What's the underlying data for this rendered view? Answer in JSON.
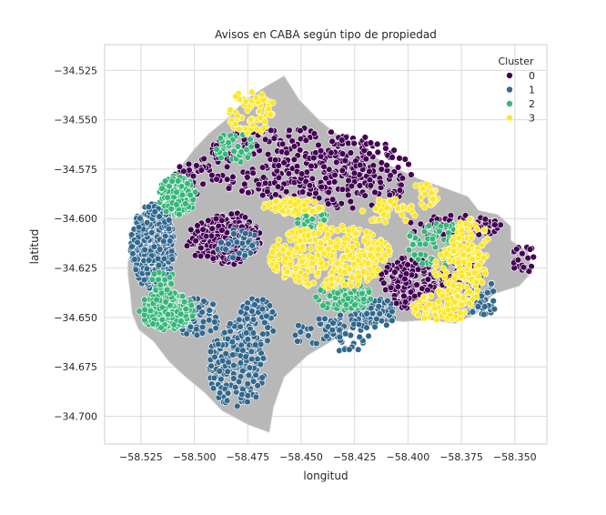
{
  "chart_data": {
    "type": "scatter",
    "title": "Avisos en CABA según tipo de propiedad",
    "xlabel": "longitud",
    "ylabel": "latitud",
    "xlim": [
      -58.542,
      -58.335
    ],
    "ylim": [
      -34.714,
      -34.512
    ],
    "xticks": [
      -58.525,
      -58.5,
      -58.475,
      -58.45,
      -58.425,
      -58.4,
      -58.375,
      -58.35
    ],
    "xtick_labels": [
      "−58.525",
      "−58.500",
      "−58.475",
      "−58.450",
      "−58.425",
      "−58.400",
      "−58.375",
      "−58.350"
    ],
    "yticks": [
      -34.525,
      -34.55,
      -34.575,
      -34.6,
      -34.625,
      -34.65,
      -34.675,
      -34.7
    ],
    "ytick_labels": [
      "−34.525",
      "−34.550",
      "−34.575",
      "−34.600",
      "−34.625",
      "−34.650",
      "−34.675",
      "−34.700"
    ],
    "grid": true,
    "legend": {
      "title": "Cluster",
      "position": "top-right",
      "entries": [
        "0",
        "1",
        "2",
        "3"
      ]
    },
    "colors": {
      "0": "#440154",
      "1": "#31688e",
      "2": "#35b779",
      "3": "#fde725",
      "map": "#b8b8b8",
      "background": "#ffffff",
      "grid": "#d9d9d9"
    },
    "map_outline": [
      [
        -58.531,
        -34.622
      ],
      [
        -58.527,
        -34.608
      ],
      [
        -58.52,
        -34.597
      ],
      [
        -58.515,
        -34.59
      ],
      [
        -58.51,
        -34.582
      ],
      [
        -58.505,
        -34.572
      ],
      [
        -58.5,
        -34.565
      ],
      [
        -58.493,
        -34.557
      ],
      [
        -58.485,
        -34.55
      ],
      [
        -58.476,
        -34.54
      ],
      [
        -58.466,
        -34.533
      ],
      [
        -58.458,
        -34.528
      ],
      [
        -58.451,
        -34.54
      ],
      [
        -58.441,
        -34.551
      ],
      [
        -58.43,
        -34.56
      ],
      [
        -58.42,
        -34.566
      ],
      [
        -58.409,
        -34.573
      ],
      [
        -58.395,
        -34.58
      ],
      [
        -58.382,
        -34.585
      ],
      [
        -58.372,
        -34.589
      ],
      [
        -58.367,
        -34.596
      ],
      [
        -58.358,
        -34.598
      ],
      [
        -58.352,
        -34.604
      ],
      [
        -58.352,
        -34.611
      ],
      [
        -58.344,
        -34.617
      ],
      [
        -58.342,
        -34.627
      ],
      [
        -58.348,
        -34.634
      ],
      [
        -58.36,
        -34.638
      ],
      [
        -58.368,
        -34.648
      ],
      [
        -58.378,
        -34.653
      ],
      [
        -58.39,
        -34.651
      ],
      [
        -58.402,
        -34.652
      ],
      [
        -58.413,
        -34.651
      ],
      [
        -58.425,
        -34.654
      ],
      [
        -58.436,
        -34.662
      ],
      [
        -58.447,
        -34.669
      ],
      [
        -58.458,
        -34.68
      ],
      [
        -58.463,
        -34.695
      ],
      [
        -58.465,
        -34.708
      ],
      [
        -58.475,
        -34.704
      ],
      [
        -58.487,
        -34.697
      ],
      [
        -58.495,
        -34.688
      ],
      [
        -58.504,
        -34.68
      ],
      [
        -58.512,
        -34.672
      ],
      [
        -58.519,
        -34.662
      ],
      [
        -58.526,
        -34.656
      ],
      [
        -58.529,
        -34.648
      ],
      [
        -58.53,
        -34.637
      ],
      [
        -58.531,
        -34.628
      ]
    ],
    "cluster_regions": [
      {
        "cluster": "0",
        "count": 260,
        "lon": [
          -58.505,
          -58.405
        ],
        "lat": [
          -34.593,
          -34.55
        ],
        "spread": 0.85
      },
      {
        "cluster": "0",
        "count": 160,
        "lon": [
          -58.455,
          -58.395
        ],
        "lat": [
          -34.598,
          -34.555
        ],
        "spread": 0.9
      },
      {
        "cluster": "0",
        "count": 150,
        "lon": [
          -58.5,
          -58.467
        ],
        "lat": [
          -34.625,
          -34.595
        ],
        "spread": 0.9
      },
      {
        "cluster": "0",
        "count": 140,
        "lon": [
          -58.505,
          -58.47
        ],
        "lat": [
          -34.622,
          -34.6
        ],
        "spread": 1.0
      },
      {
        "cluster": "0",
        "count": 150,
        "lon": [
          -58.415,
          -58.385
        ],
        "lat": [
          -34.647,
          -34.618
        ],
        "spread": 0.9
      },
      {
        "cluster": "0",
        "count": 60,
        "lon": [
          -58.386,
          -58.365
        ],
        "lat": [
          -34.64,
          -34.62
        ],
        "spread": 0.9
      },
      {
        "cluster": "0",
        "count": 55,
        "lon": [
          -58.4,
          -58.355
        ],
        "lat": [
          -34.61,
          -34.598
        ],
        "spread": 1.0
      },
      {
        "cluster": "0",
        "count": 25,
        "lon": [
          -58.352,
          -58.34
        ],
        "lat": [
          -34.628,
          -34.612
        ],
        "spread": 1.0
      },
      {
        "cluster": "0",
        "count": 30,
        "lon": [
          -58.51,
          -58.495
        ],
        "lat": [
          -34.592,
          -34.57
        ],
        "spread": 1.0
      },
      {
        "cluster": "1",
        "count": 330,
        "lon": [
          -58.531,
          -58.508
        ],
        "lat": [
          -34.638,
          -34.59
        ],
        "spread": 0.9
      },
      {
        "cluster": "1",
        "count": 200,
        "lon": [
          -58.495,
          -58.465
        ],
        "lat": [
          -34.698,
          -34.65
        ],
        "spread": 0.9
      },
      {
        "cluster": "1",
        "count": 70,
        "lon": [
          -58.48,
          -58.462
        ],
        "lat": [
          -34.665,
          -34.64
        ],
        "spread": 1.0
      },
      {
        "cluster": "1",
        "count": 65,
        "lon": [
          -58.51,
          -58.488
        ],
        "lat": [
          -34.66,
          -34.64
        ],
        "spread": 1.0
      },
      {
        "cluster": "1",
        "count": 40,
        "lon": [
          -58.49,
          -58.47
        ],
        "lat": [
          -34.62,
          -34.605
        ],
        "spread": 1.0
      },
      {
        "cluster": "1",
        "count": 60,
        "lon": [
          -58.378,
          -58.357
        ],
        "lat": [
          -34.652,
          -34.628
        ],
        "spread": 0.9
      },
      {
        "cluster": "1",
        "count": 60,
        "lon": [
          -58.425,
          -58.405
        ],
        "lat": [
          -34.655,
          -34.64
        ],
        "spread": 1.0
      },
      {
        "cluster": "1",
        "count": 45,
        "lon": [
          -58.44,
          -58.418
        ],
        "lat": [
          -34.668,
          -34.648
        ],
        "spread": 1.0
      },
      {
        "cluster": "1",
        "count": 25,
        "lon": [
          -58.455,
          -58.43
        ],
        "lat": [
          -34.668,
          -34.65
        ],
        "spread": 1.0
      },
      {
        "cluster": "2",
        "count": 220,
        "lon": [
          -58.528,
          -58.498
        ],
        "lat": [
          -34.658,
          -34.635
        ],
        "spread": 0.85
      },
      {
        "cluster": "2",
        "count": 120,
        "lon": [
          -58.518,
          -58.498
        ],
        "lat": [
          -34.6,
          -34.577
        ],
        "spread": 0.9
      },
      {
        "cluster": "2",
        "count": 70,
        "lon": [
          -58.445,
          -58.415
        ],
        "lat": [
          -34.648,
          -34.63
        ],
        "spread": 0.9
      },
      {
        "cluster": "2",
        "count": 70,
        "lon": [
          -58.4,
          -58.375
        ],
        "lat": [
          -34.625,
          -34.6
        ],
        "spread": 1.0
      },
      {
        "cluster": "2",
        "count": 40,
        "lon": [
          -58.49,
          -58.472
        ],
        "lat": [
          -34.572,
          -34.556
        ],
        "spread": 1.0
      },
      {
        "cluster": "2",
        "count": 30,
        "lon": [
          -58.453,
          -58.438
        ],
        "lat": [
          -34.605,
          -34.594
        ],
        "spread": 1.0
      },
      {
        "cluster": "2",
        "count": 20,
        "lon": [
          -58.52,
          -58.508
        ],
        "lat": [
          -34.64,
          -34.625
        ],
        "spread": 1.0
      },
      {
        "cluster": "3",
        "count": 360,
        "lon": [
          -58.47,
          -58.403
        ],
        "lat": [
          -34.638,
          -34.6
        ],
        "spread": 0.85
      },
      {
        "cluster": "3",
        "count": 80,
        "lon": [
          -58.468,
          -58.44
        ],
        "lat": [
          -34.598,
          -34.59
        ],
        "spread": 1.0
      },
      {
        "cluster": "3",
        "count": 130,
        "lon": [
          -58.39,
          -58.362
        ],
        "lat": [
          -34.645,
          -34.612
        ],
        "spread": 0.9
      },
      {
        "cluster": "3",
        "count": 80,
        "lon": [
          -58.398,
          -58.37
        ],
        "lat": [
          -34.652,
          -34.638
        ],
        "spread": 1.0
      },
      {
        "cluster": "3",
        "count": 60,
        "lon": [
          -58.38,
          -58.362
        ],
        "lat": [
          -34.625,
          -34.6
        ],
        "spread": 1.0
      },
      {
        "cluster": "3",
        "count": 65,
        "lon": [
          -58.485,
          -58.462
        ],
        "lat": [
          -34.558,
          -34.535
        ],
        "spread": 1.0
      },
      {
        "cluster": "3",
        "count": 40,
        "lon": [
          -58.422,
          -58.395
        ],
        "lat": [
          -34.603,
          -34.59
        ],
        "spread": 1.0
      },
      {
        "cluster": "3",
        "count": 25,
        "lon": [
          -58.398,
          -58.385
        ],
        "lat": [
          -34.595,
          -34.58
        ],
        "spread": 1.0
      }
    ]
  }
}
